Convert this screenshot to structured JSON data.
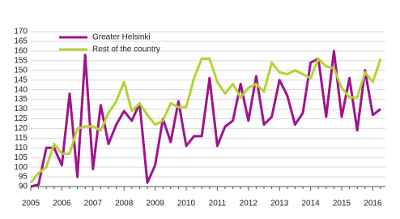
{
  "chart_data": {
    "type": "line",
    "categories": [
      "2005",
      null,
      null,
      null,
      "2006",
      null,
      null,
      null,
      "2007",
      null,
      null,
      null,
      "2008",
      null,
      null,
      null,
      "2009",
      null,
      null,
      null,
      "2010",
      null,
      null,
      null,
      "2011",
      null,
      null,
      null,
      "2012",
      null,
      null,
      null,
      "2013",
      null,
      null,
      null,
      "2014",
      null,
      null,
      null,
      "2015",
      null,
      null,
      null,
      "2016",
      null
    ],
    "series": [
      {
        "name": "Greater Helsinki",
        "color": "#a0148c",
        "values": [
          90,
          91,
          110,
          110,
          101,
          138,
          95,
          158,
          99,
          132,
          112,
          122,
          129,
          124,
          133,
          92,
          101,
          125,
          113,
          134,
          111,
          116,
          116,
          146,
          111,
          121,
          124,
          143,
          124,
          147,
          122,
          126,
          145,
          137,
          122,
          128,
          154,
          156,
          126,
          160,
          126,
          146,
          119,
          150,
          127,
          130
        ]
      },
      {
        "name": "Rest of the country",
        "color": "#b5d334",
        "values": [
          92,
          97,
          100,
          112,
          107,
          107,
          120,
          121,
          121,
          119,
          128,
          134,
          144,
          129,
          133,
          127,
          122,
          124,
          133,
          131,
          131,
          146,
          156,
          156,
          144,
          138,
          143,
          136,
          141,
          143,
          139,
          154,
          149,
          148,
          150,
          148,
          146,
          156,
          152,
          151,
          141,
          136,
          136,
          149,
          144,
          156
        ]
      }
    ],
    "ylim": [
      90,
      170
    ],
    "yticks": [
      90,
      95,
      100,
      105,
      110,
      115,
      120,
      125,
      130,
      135,
      140,
      145,
      150,
      155,
      160,
      165,
      170
    ],
    "grid": true,
    "legend": "top-left"
  }
}
